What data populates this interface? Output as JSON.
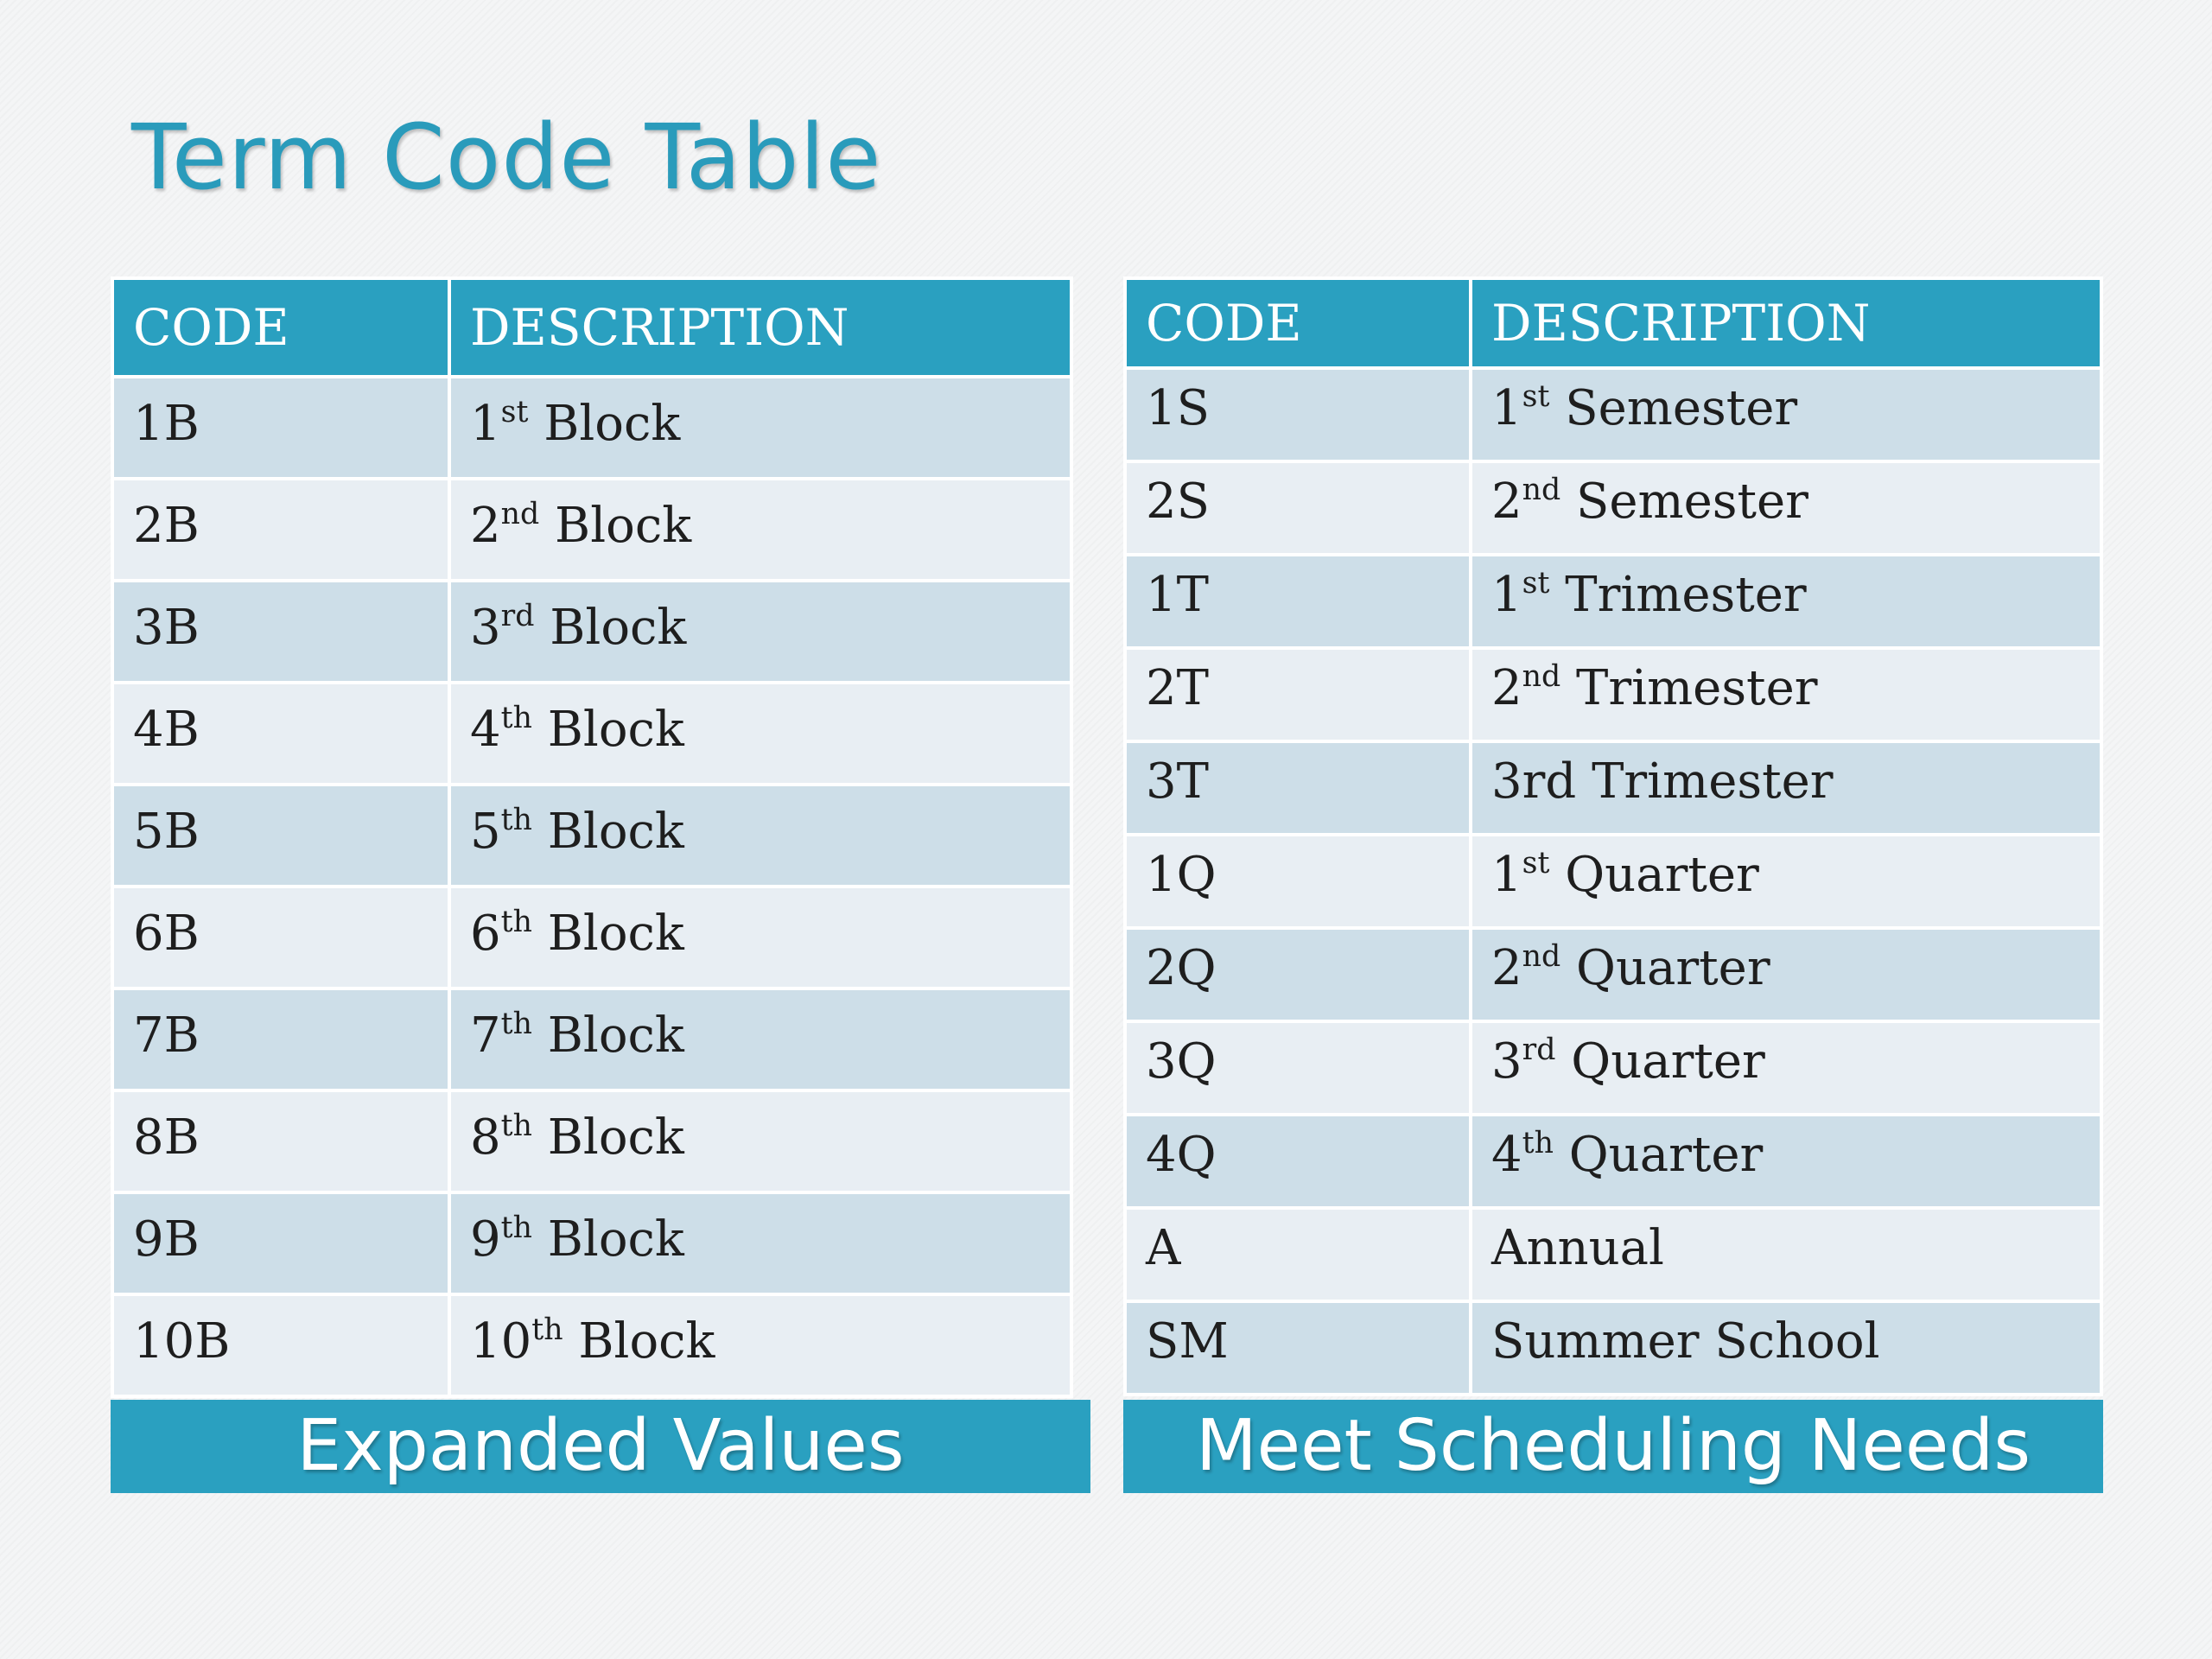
{
  "title": "Term Code Table",
  "accent_color": "#2aa0c0",
  "title_color": "#2a9bbb",
  "row_colors": [
    "#cddee8",
    "#e8eef3"
  ],
  "left_table": {
    "headers": [
      "CODE",
      "DESCRIPTION"
    ],
    "rows": [
      {
        "code": "1B",
        "num": "1",
        "sup": "st",
        "desc": "Block"
      },
      {
        "code": "2B",
        "num": "2",
        "sup": "nd",
        "desc": "Block"
      },
      {
        "code": "3B",
        "num": "3",
        "sup": "rd",
        "desc": "Block"
      },
      {
        "code": "4B",
        "num": "4",
        "sup": "th",
        "desc": "Block"
      },
      {
        "code": "5B",
        "num": "5",
        "sup": "th",
        "desc": "Block"
      },
      {
        "code": "6B",
        "num": "6",
        "sup": "th",
        "desc": "Block"
      },
      {
        "code": "7B",
        "num": "7",
        "sup": "th",
        "desc": "Block"
      },
      {
        "code": "8B",
        "num": "8",
        "sup": "th",
        "desc": "Block"
      },
      {
        "code": "9B",
        "num": "9",
        "sup": "th",
        "desc": "Block"
      },
      {
        "code": "10B",
        "num": "10",
        "sup": "th",
        "desc": "Block"
      }
    ],
    "caption": "Expanded Values"
  },
  "right_table": {
    "headers": [
      "CODE",
      "DESCRIPTION"
    ],
    "rows": [
      {
        "code": "1S",
        "num": "1",
        "sup": "st",
        "desc": "Semester"
      },
      {
        "code": "2S",
        "num": "2",
        "sup": "nd",
        "desc": "Semester"
      },
      {
        "code": "1T",
        "num": "1",
        "sup": "st",
        "desc": "Trimester"
      },
      {
        "code": "2T",
        "num": "2",
        "sup": "nd",
        "desc": "Trimester"
      },
      {
        "code": "3T",
        "num": "3rd",
        "sup": "",
        "desc": "Trimester"
      },
      {
        "code": "1Q",
        "num": "1",
        "sup": "st",
        "desc": "Quarter"
      },
      {
        "code": "2Q",
        "num": "2",
        "sup": "nd",
        "desc": "Quarter"
      },
      {
        "code": "3Q",
        "num": "3",
        "sup": "rd",
        "desc": "Quarter"
      },
      {
        "code": "4Q",
        "num": "4",
        "sup": "th",
        "desc": "Quarter"
      },
      {
        "code": "A",
        "num": "",
        "sup": "",
        "desc": "Annual"
      },
      {
        "code": "SM",
        "num": "",
        "sup": "",
        "desc": "Summer School"
      }
    ],
    "caption": "Meet Scheduling Needs"
  }
}
